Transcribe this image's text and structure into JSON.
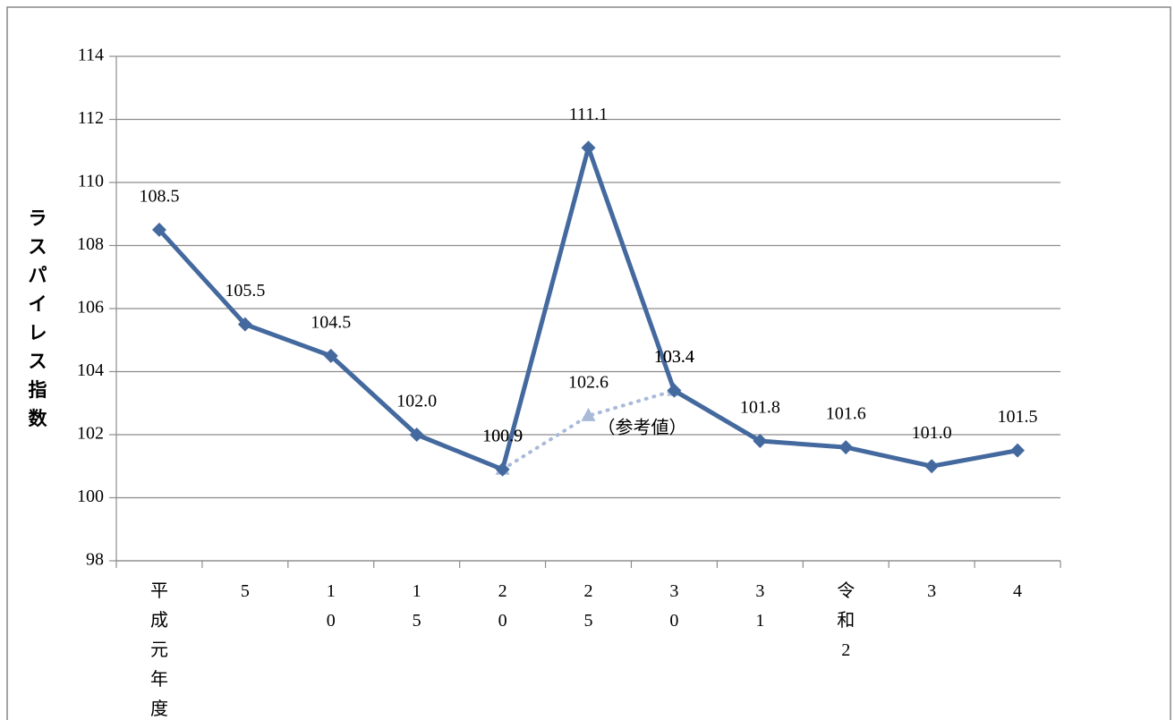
{
  "chart_data": {
    "type": "line",
    "y_label": "ラスパイレス指数",
    "categories": [
      "平成元年度",
      "5",
      "10",
      "15",
      "20",
      "25",
      "30",
      "31",
      "令和2",
      "3",
      "4"
    ],
    "series": [
      {
        "color": "#44699e",
        "marker": "diamond",
        "style": "solid",
        "values": [
          108.5,
          105.5,
          104.5,
          102.0,
          100.9,
          111.1,
          103.4,
          101.8,
          101.6,
          101.0,
          101.5
        ],
        "value_labels": [
          "108.5",
          "105.5",
          "104.5",
          "102.0",
          "100.9",
          "111.1",
          "103.4",
          "101.8",
          "101.6",
          "101.0",
          "101.5"
        ]
      },
      {
        "color": "#a9bad9",
        "marker": "triangle",
        "style": "dotted",
        "values": [
          null,
          null,
          null,
          null,
          100.9,
          102.6,
          103.4,
          null,
          null,
          null,
          null
        ],
        "value_labels": [
          null,
          null,
          null,
          null,
          "100.9",
          "102.6",
          "103.4",
          null,
          null,
          null,
          null
        ]
      }
    ],
    "annotations": [
      {
        "text": "（参考値）",
        "category_index": 5,
        "value": 102.6
      }
    ],
    "ylim": [
      98,
      114
    ],
    "yticks": [
      98,
      100,
      102,
      104,
      106,
      108,
      110,
      112,
      114
    ],
    "grid": true
  }
}
